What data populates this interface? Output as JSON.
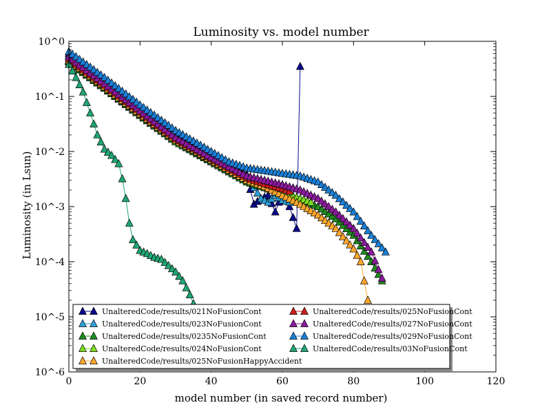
{
  "chart_data": {
    "type": "line",
    "title": "Luminosity vs. model number",
    "xlabel": "model number  (in saved record number)",
    "ylabel": "Luminosity (in Lsun)",
    "xlim": [
      0,
      120
    ],
    "ylim_log10": [
      -6,
      0
    ],
    "yscale": "log",
    "x_ticks": [
      0,
      20,
      40,
      60,
      80,
      100,
      120
    ],
    "x_tick_labels": [
      "0",
      "20",
      "40",
      "60",
      "80",
      "100",
      "120"
    ],
    "y_ticks_log10": [
      0,
      -1,
      -2,
      -3,
      -4,
      -5,
      -6
    ],
    "y_tick_labels": [
      "10^0",
      "10^-1",
      "10^-2",
      "10^-3",
      "10^-4",
      "10^-5",
      "10^-6"
    ],
    "grid": false,
    "legend_position": "lower-center",
    "marker": "triangle-up",
    "series": [
      {
        "name": "UnalteredCode/results/021NoFusionCont",
        "color": "#0a0a8c",
        "x": [
          0,
          10,
          20,
          30,
          40,
          45,
          50,
          52,
          54,
          56,
          58,
          60,
          62,
          64,
          65
        ],
        "y": [
          0.6,
          0.2,
          0.062,
          0.02,
          0.0085,
          0.0058,
          0.0038,
          0.0011,
          0.0014,
          0.0016,
          0.0008,
          0.0018,
          0.001,
          0.0004,
          0.35
        ]
      },
      {
        "name": "UnalteredCode/results/023NoFusionCont",
        "color": "#2e9ed6",
        "x": [
          0,
          10,
          20,
          30,
          40,
          45,
          50,
          54,
          56,
          58,
          60,
          62
        ],
        "y": [
          0.55,
          0.18,
          0.058,
          0.019,
          0.008,
          0.0055,
          0.0035,
          0.0014,
          0.0012,
          0.0016,
          0.0013,
          0.0012
        ]
      },
      {
        "name": "UnalteredCode/results/0235NoFusionCont",
        "color": "#1e8c1e",
        "x": [
          0,
          10,
          20,
          30,
          40,
          50,
          55,
          60,
          65,
          70,
          75,
          80,
          85,
          88
        ],
        "y": [
          0.42,
          0.14,
          0.045,
          0.015,
          0.0065,
          0.0028,
          0.0022,
          0.0017,
          0.0013,
          0.001,
          0.0006,
          0.0003,
          0.0001,
          4.5e-05
        ]
      },
      {
        "name": "UnalteredCode/results/024NoFusionCont",
        "color": "#7ddc1f",
        "x": [
          0,
          10,
          20,
          30,
          40,
          50,
          55,
          60,
          65,
          68
        ],
        "y": [
          0.44,
          0.145,
          0.047,
          0.016,
          0.0068,
          0.003,
          0.0023,
          0.0018,
          0.0014,
          0.0012
        ]
      },
      {
        "name": "UnalteredCode/results/025NoFusionHappyAccident",
        "color": "#ffa62b",
        "x": [
          0,
          10,
          20,
          30,
          40,
          50,
          55,
          60,
          65,
          70,
          75,
          80,
          82,
          84,
          86
        ],
        "y": [
          0.45,
          0.15,
          0.048,
          0.016,
          0.007,
          0.003,
          0.0023,
          0.0016,
          0.0011,
          0.0007,
          0.0004,
          0.00017,
          0.0001,
          2e-05,
          1e-05
        ]
      },
      {
        "name": "UnalteredCode/results/025NoFusionCont",
        "color": "#cc1e1e",
        "x": [
          0,
          10,
          20,
          30,
          40,
          50,
          55,
          60,
          62
        ],
        "y": [
          0.48,
          0.16,
          0.052,
          0.017,
          0.0075,
          0.0033,
          0.0026,
          0.0021,
          0.0019
        ]
      },
      {
        "name": "UnalteredCode/results/027NoFusionCont",
        "color": "#8b1a9e",
        "x": [
          0,
          10,
          20,
          30,
          40,
          50,
          55,
          60,
          65,
          70,
          75,
          80,
          85,
          88
        ],
        "y": [
          0.52,
          0.17,
          0.055,
          0.018,
          0.0078,
          0.0036,
          0.003,
          0.0025,
          0.002,
          0.0014,
          0.0008,
          0.0004,
          0.00015,
          5e-05
        ]
      },
      {
        "name": "UnalteredCode/results/029NoFusionCont",
        "color": "#1a7fd6",
        "x": [
          0,
          10,
          20,
          30,
          40,
          45,
          50,
          55,
          60,
          65,
          70,
          75,
          80,
          85,
          89
        ],
        "y": [
          0.65,
          0.22,
          0.07,
          0.024,
          0.01,
          0.0065,
          0.005,
          0.0045,
          0.004,
          0.0036,
          0.0028,
          0.0016,
          0.0008,
          0.0003,
          0.00015
        ]
      },
      {
        "name": "UnalteredCode/results/03NoFusionCont",
        "color": "#1fa673",
        "x": [
          0,
          2,
          4,
          6,
          8,
          10,
          12,
          14,
          15,
          16,
          17,
          18,
          20,
          22,
          24,
          26,
          28,
          30,
          32,
          34,
          36
        ],
        "y": [
          0.38,
          0.22,
          0.12,
          0.05,
          0.02,
          0.011,
          0.0085,
          0.006,
          0.0032,
          0.0014,
          0.0005,
          0.00025,
          0.00016,
          0.00014,
          0.00012,
          0.00011,
          8.5e-05,
          6.5e-05,
          4.5e-05,
          2.5e-05,
          1.2e-05
        ]
      }
    ]
  }
}
